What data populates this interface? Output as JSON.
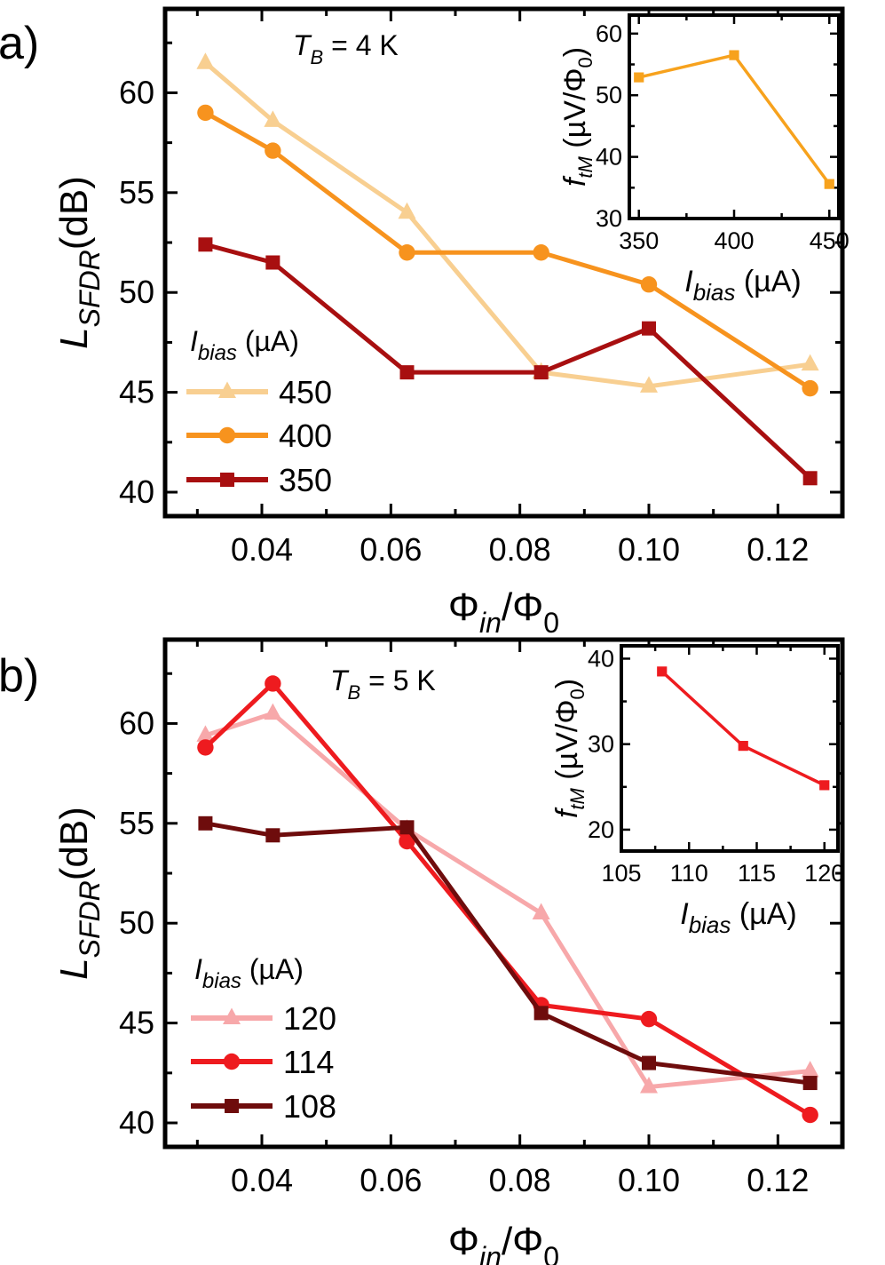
{
  "chart_data": [
    {
      "type": "line",
      "panel_label": "a)",
      "annotation": {
        "T": "T",
        "sub": "B",
        "rest": " = 4 K"
      },
      "xlabel": {
        "main": "Φ",
        "sub": "in",
        "tail": "/Φ",
        "tail_sub": "0"
      },
      "ylabel": {
        "main": "L",
        "sub": "SFDR",
        "tail": "(dB)"
      },
      "xlim": [
        0.025,
        0.13
      ],
      "ylim": [
        38.8,
        64.2
      ],
      "xticks": [
        0.04,
        0.06,
        0.08,
        0.1,
        0.12
      ],
      "xtick_labels": [
        "0.04",
        "0.06",
        "0.08",
        "0.10",
        "0.12"
      ],
      "yticks": [
        40,
        45,
        50,
        55,
        60
      ],
      "ytick_labels": [
        "40",
        "45",
        "50",
        "55",
        "60"
      ],
      "legend_title": {
        "main": "I",
        "sub": "bias",
        "tail": " (µA)"
      },
      "legend_position": "left",
      "series": [
        {
          "name": "450",
          "color": "#f8cf91",
          "marker": "triangle",
          "x": [
            0.03125,
            0.0417,
            0.0625,
            0.0833,
            0.1,
            0.125
          ],
          "y": [
            61.5,
            58.6,
            54.0,
            46.0,
            45.3,
            46.4
          ]
        },
        {
          "name": "400",
          "color": "#f7931e",
          "marker": "circle",
          "x": [
            0.03125,
            0.0417,
            0.0625,
            0.0833,
            0.1,
            0.125
          ],
          "y": [
            59.0,
            57.1,
            52.0,
            52.0,
            50.4,
            45.2
          ]
        },
        {
          "name": "350",
          "color": "#a80f10",
          "marker": "square",
          "x": [
            0.03125,
            0.0417,
            0.0625,
            0.0833,
            0.1,
            0.125
          ],
          "y": [
            52.4,
            51.5,
            46.0,
            46.0,
            48.2,
            40.7
          ]
        }
      ],
      "inset": {
        "xlabel": {
          "main": "I",
          "sub": "bias",
          "tail": " (µA)"
        },
        "ylabel": {
          "main": "f",
          "sub": "tM",
          "tail": " (µV/Φ",
          "tail_sub": "0",
          "close": ")"
        },
        "xlim": [
          345,
          455
        ],
        "ylim": [
          30,
          63
        ],
        "xticks": [
          350,
          400,
          450
        ],
        "xtick_labels": [
          "350",
          "400",
          "450"
        ],
        "yticks": [
          30,
          40,
          50,
          60
        ],
        "ytick_labels": [
          "30",
          "40",
          "50",
          "60"
        ],
        "color": "#f7a21d",
        "x": [
          350,
          400,
          450
        ],
        "y": [
          52.9,
          56.5,
          35.6
        ]
      }
    },
    {
      "type": "line",
      "panel_label": "b)",
      "annotation": {
        "T": "T",
        "sub": "B",
        "rest": " = 5 K"
      },
      "xlabel": {
        "main": "Φ",
        "sub": "in",
        "tail": "/Φ",
        "tail_sub": "0"
      },
      "ylabel": {
        "main": "L",
        "sub": "SFDR",
        "tail": "(dB)"
      },
      "xlim": [
        0.025,
        0.13
      ],
      "ylim": [
        38.8,
        64.2
      ],
      "xticks": [
        0.04,
        0.06,
        0.08,
        0.1,
        0.12
      ],
      "xtick_labels": [
        "0.04",
        "0.06",
        "0.08",
        "0.10",
        "0.12"
      ],
      "yticks": [
        40,
        45,
        50,
        55,
        60
      ],
      "ytick_labels": [
        "40",
        "45",
        "50",
        "55",
        "60"
      ],
      "legend_title": {
        "main": "I",
        "sub": "bias",
        "tail": " (µA)"
      },
      "legend_position": "left",
      "series": [
        {
          "name": "120",
          "color": "#f7a8aa",
          "marker": "triangle",
          "x": [
            0.03125,
            0.0417,
            0.0625,
            0.0833,
            0.1,
            0.125
          ],
          "y": [
            59.4,
            60.5,
            54.7,
            50.5,
            41.8,
            42.6
          ]
        },
        {
          "name": "114",
          "color": "#ee1b1f",
          "marker": "circle",
          "x": [
            0.03125,
            0.0417,
            0.0625,
            0.0833,
            0.1,
            0.125
          ],
          "y": [
            58.8,
            62.0,
            54.1,
            45.9,
            45.2,
            40.4
          ]
        },
        {
          "name": "108",
          "color": "#6e0c0c",
          "marker": "square",
          "x": [
            0.03125,
            0.0417,
            0.0625,
            0.0833,
            0.1,
            0.125
          ],
          "y": [
            55.0,
            54.4,
            54.8,
            45.5,
            43.0,
            42.0
          ]
        }
      ],
      "inset": {
        "xlabel": {
          "main": "I",
          "sub": "bias",
          "tail": " (µA)"
        },
        "ylabel": {
          "main": "f",
          "sub": "tM",
          "tail": " (µV/Φ",
          "tail_sub": "0",
          "close": ")"
        },
        "xlim": [
          105,
          121
        ],
        "ylim": [
          17.5,
          41.5
        ],
        "xticks": [
          105,
          110,
          115,
          120
        ],
        "xtick_labels": [
          "105",
          "110",
          "115",
          "120"
        ],
        "yticks": [
          20,
          30,
          40
        ],
        "ytick_labels": [
          "20",
          "30",
          "40"
        ],
        "color": "#ee1b1f",
        "x": [
          108,
          114,
          120
        ],
        "y": [
          38.5,
          29.8,
          25.2
        ]
      }
    }
  ]
}
